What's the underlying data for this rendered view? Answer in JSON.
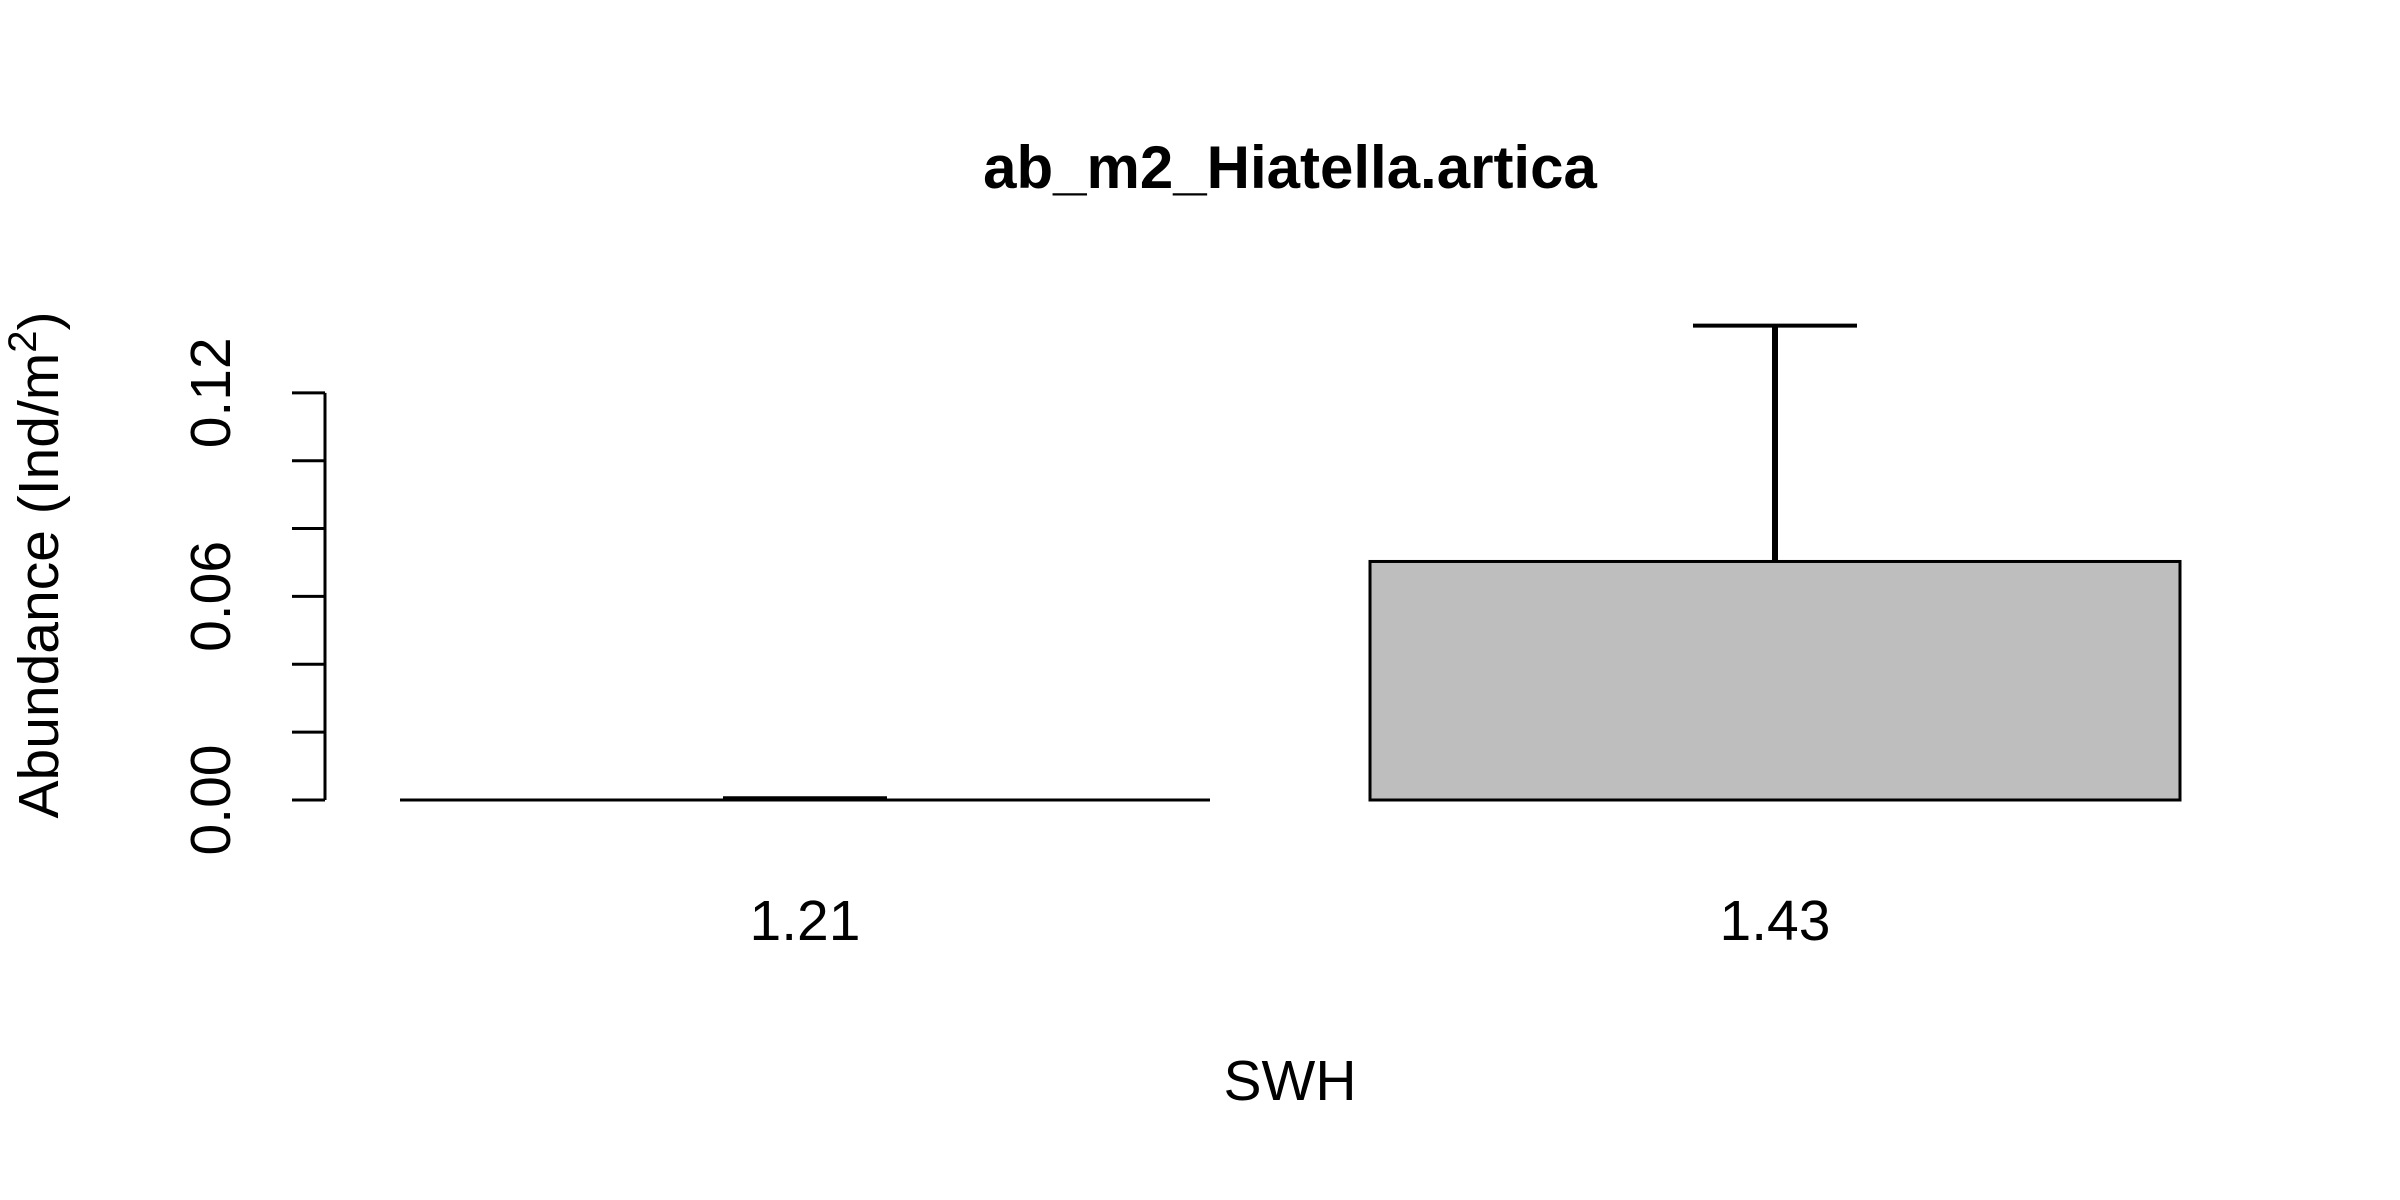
{
  "chart_data": {
    "type": "bar",
    "title": "ab_m2_Hiatella.artica",
    "xlabel": "SWH",
    "ylabel": {
      "text": "Abundance (Ind/m",
      "superscript": "2",
      "suffix": ")"
    },
    "categories": [
      "1.21",
      "1.43"
    ],
    "values": [
      0.0,
      0.0703
    ],
    "error_upper": [
      0.0005,
      0.1398
    ],
    "ylim": [
      0,
      0.14
    ],
    "yticks": [
      0,
      0.02,
      0.04,
      0.06,
      0.08,
      0.1,
      0.12
    ],
    "ytick_labels": [
      "0.00",
      "",
      "",
      "0.06",
      "",
      "",
      "0.12"
    ],
    "bar_color": "#bebebe",
    "grid": false
  }
}
